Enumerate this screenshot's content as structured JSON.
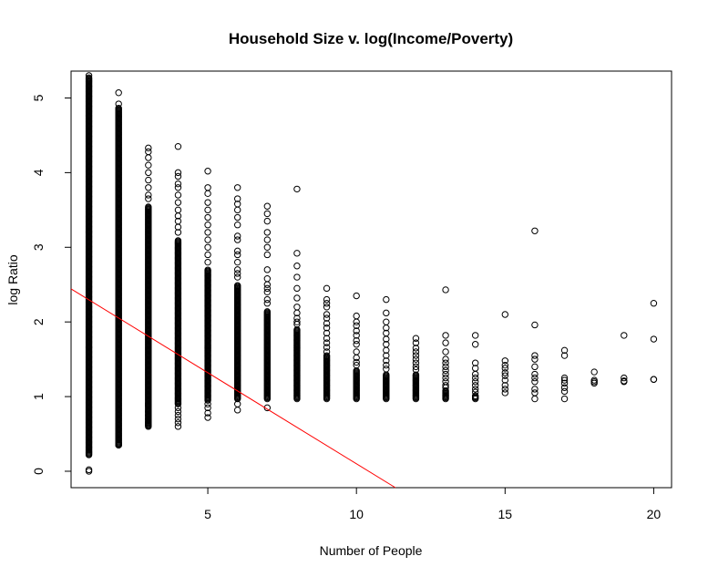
{
  "chart_data": {
    "type": "scatter",
    "title": "Household Size v. log(Income/Poverty)",
    "xlabel": "Number of People",
    "ylabel": "log Ratio",
    "xlim": [
      0.4,
      20.6
    ],
    "ylim": [
      -0.22,
      5.36
    ],
    "x_ticks": [
      5,
      10,
      15,
      20
    ],
    "y_ticks": [
      0,
      1,
      2,
      3,
      4,
      5
    ],
    "grid": false,
    "legend": "none",
    "point_color": "#000000",
    "line_color": "#ff0000",
    "columns": [
      {
        "x": 1,
        "min": 0.22,
        "max": 5.28,
        "outliers": [
          0.0,
          0.02,
          5.3
        ]
      },
      {
        "x": 2,
        "min": 0.35,
        "max": 4.87,
        "outliers": [
          0.35,
          0.37,
          4.92,
          5.07
        ]
      },
      {
        "x": 3,
        "min": 0.6,
        "max": 3.55,
        "extras": [
          4.33,
          4.28,
          4.2,
          4.1,
          4.0,
          3.9,
          3.8,
          3.7,
          3.65,
          0.9,
          0.88,
          0.8,
          0.75,
          0.7,
          0.65,
          0.62
        ]
      },
      {
        "x": 4,
        "min": 0.9,
        "max": 3.1,
        "extras": [
          4.35,
          4.0,
          3.95,
          3.85,
          3.8,
          3.7,
          3.6,
          3.5,
          3.42,
          3.35,
          3.27,
          3.2,
          0.85,
          0.8,
          0.75,
          0.7,
          0.65,
          0.6
        ]
      },
      {
        "x": 5,
        "min": 0.95,
        "max": 2.7,
        "extras": [
          4.02,
          3.8,
          3.72,
          3.6,
          3.5,
          3.4,
          3.3,
          3.2,
          3.1,
          3.0,
          2.9,
          2.8,
          0.9,
          0.85,
          0.78,
          0.72
        ]
      },
      {
        "x": 6,
        "min": 0.97,
        "max": 2.5,
        "extras": [
          3.8,
          3.65,
          3.58,
          3.5,
          3.4,
          3.3,
          3.15,
          3.1,
          2.95,
          2.9,
          2.8,
          2.7,
          2.65,
          2.6,
          0.9,
          0.82
        ]
      },
      {
        "x": 7,
        "min": 0.97,
        "max": 2.15,
        "extras": [
          3.55,
          3.45,
          3.35,
          3.2,
          3.1,
          3.0,
          2.9,
          2.7,
          2.58,
          2.5,
          2.45,
          2.4,
          2.3,
          2.25,
          0.85
        ]
      },
      {
        "x": 8,
        "min": 0.97,
        "max": 1.9,
        "extras": [
          3.78,
          2.92,
          2.75,
          2.6,
          2.45,
          2.32,
          2.2,
          2.12,
          2.05,
          2.0,
          1.97
        ]
      },
      {
        "x": 9,
        "min": 0.97,
        "max": 1.55,
        "extras": [
          2.45,
          2.3,
          2.25,
          2.2,
          2.1,
          2.05,
          1.98,
          1.92,
          1.85,
          1.78,
          1.72,
          1.66,
          1.6
        ]
      },
      {
        "x": 10,
        "min": 0.97,
        "max": 1.35,
        "extras": [
          2.35,
          2.08,
          2.0,
          1.95,
          1.88,
          1.82,
          1.75,
          1.7,
          1.6,
          1.52,
          1.46,
          1.42
        ]
      },
      {
        "x": 11,
        "min": 0.97,
        "max": 1.3,
        "extras": [
          2.3,
          2.12,
          2.0,
          1.92,
          1.85,
          1.77,
          1.7,
          1.62,
          1.55,
          1.48,
          1.42,
          1.37
        ]
      },
      {
        "x": 12,
        "min": 0.97,
        "max": 1.3,
        "extras": [
          1.78,
          1.72,
          1.65,
          1.6,
          1.55,
          1.5,
          1.45,
          1.4,
          1.36
        ]
      },
      {
        "x": 13,
        "min": 0.97,
        "max": 1.08,
        "extras": [
          2.43,
          1.82,
          1.72,
          1.6,
          1.5,
          1.45,
          1.4,
          1.35,
          1.3,
          1.25,
          1.2,
          1.15,
          1.12
        ]
      },
      {
        "x": 14,
        "min": 0.97,
        "max": 1.02,
        "extras": [
          1.82,
          1.7,
          1.45,
          1.38,
          1.3,
          1.25,
          1.2,
          1.15,
          1.1,
          1.06
        ]
      },
      {
        "x": 15,
        "min": 1.05,
        "max": 1.05,
        "extras": [
          2.1,
          1.48,
          1.42,
          1.38,
          1.32,
          1.28,
          1.22,
          1.15,
          1.1
        ]
      },
      {
        "x": 16,
        "min": 0.97,
        "max": 0.97,
        "extras": [
          3.22,
          1.96,
          1.55,
          1.5,
          1.4,
          1.3,
          1.25,
          1.2,
          1.1,
          1.05
        ]
      },
      {
        "x": 17,
        "min": 0.97,
        "max": 0.97,
        "extras": [
          1.62,
          1.55,
          1.25,
          1.22,
          1.18,
          1.12,
          1.07
        ]
      },
      {
        "x": 18,
        "min": 1.2,
        "max": 1.2,
        "extras": [
          1.33,
          1.22,
          1.18
        ]
      },
      {
        "x": 19,
        "min": 1.21,
        "max": 1.21,
        "extras": [
          1.82,
          1.25,
          1.2
        ]
      },
      {
        "x": 20,
        "min": 1.23,
        "max": 1.23,
        "extras": [
          2.25,
          1.77,
          1.23
        ]
      }
    ],
    "regression_line": {
      "intercept": 2.54,
      "slope": -0.244
    }
  }
}
